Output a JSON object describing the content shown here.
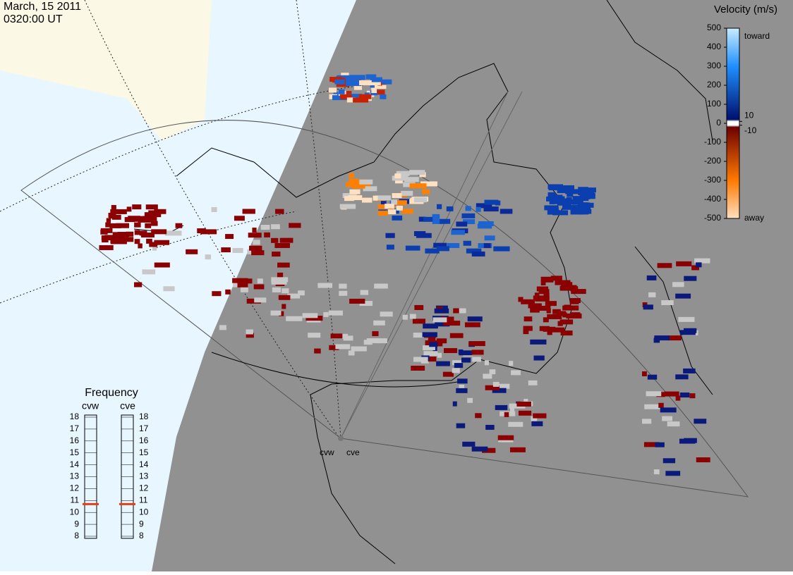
{
  "header": {
    "date": "March, 15 2011",
    "time": "0320:00 UT"
  },
  "velocity_scale": {
    "title": "Velocity (m/s)",
    "ticks": [
      500,
      400,
      300,
      200,
      100,
      0,
      -100,
      -200,
      -300,
      -400,
      -500
    ],
    "inner_ticks": [
      10,
      -10
    ],
    "toward": "toward",
    "away": "away"
  },
  "frequency": {
    "title": "Frequency",
    "ticks": [
      8,
      9,
      10,
      11,
      12,
      13,
      14,
      15,
      16,
      17,
      18
    ],
    "radars": [
      {
        "name": "cvw",
        "value": 10.7
      },
      {
        "name": "cve",
        "value": 10.7
      }
    ]
  },
  "radar_labels": [
    "cvw",
    "cve"
  ]
}
